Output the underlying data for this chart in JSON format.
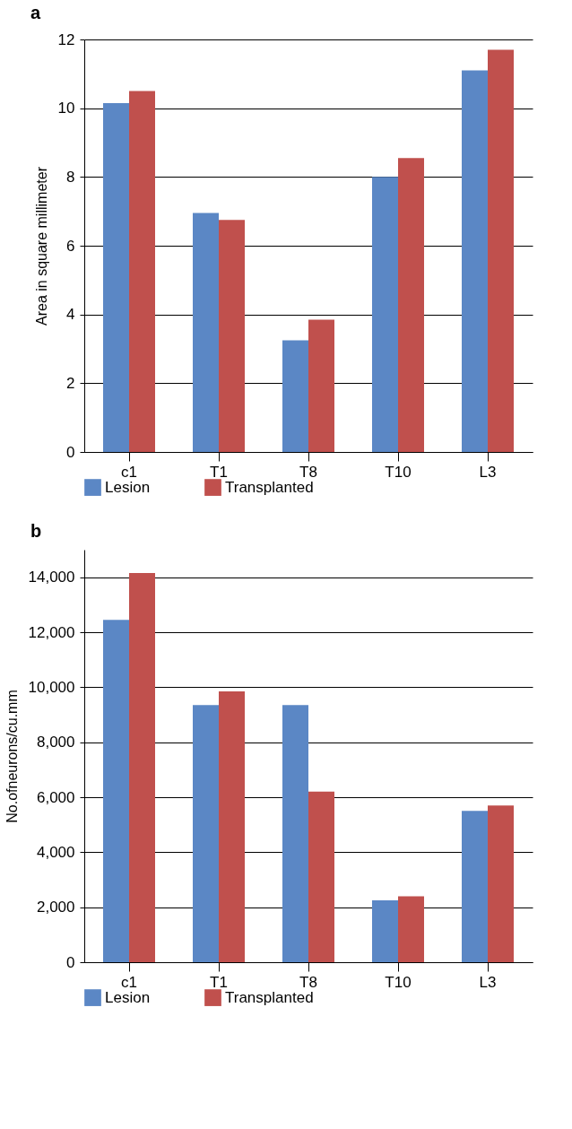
{
  "chart_data": [
    {
      "type": "bar",
      "title": "a",
      "ylabel": "Area in square millimeter",
      "categories": [
        "c1",
        "T1",
        "T8",
        "T10",
        "L3"
      ],
      "series": [
        {
          "name": "Lesion",
          "color": "#5b87c5",
          "values": [
            10.15,
            6.95,
            3.25,
            8.0,
            11.1
          ]
        },
        {
          "name": "Transplanted",
          "color": "#c0504d",
          "values": [
            10.5,
            6.75,
            3.85,
            8.55,
            11.7
          ]
        }
      ],
      "ylim": [
        0,
        12
      ],
      "yticks": [
        0,
        2,
        4,
        6,
        8,
        10,
        12
      ],
      "grid": "y",
      "legend": "bottom"
    },
    {
      "type": "bar",
      "title": "b",
      "ylabel": "No.ofneurons/cu.mm",
      "categories": [
        "c1",
        "T1",
        "T8",
        "T10",
        "L3"
      ],
      "series": [
        {
          "name": "Lesion",
          "color": "#5b87c5",
          "values": [
            12450,
            9350,
            9350,
            2250,
            5500
          ]
        },
        {
          "name": "Transplanted",
          "color": "#c0504d",
          "values": [
            14150,
            9850,
            6200,
            2400,
            5700
          ]
        }
      ],
      "ylim": [
        0,
        15000
      ],
      "yticks": [
        0,
        {
          "value": 2000,
          "label": "2,000"
        },
        {
          "value": 4000,
          "label": "4,000"
        },
        {
          "value": 6000,
          "label": "6,000"
        },
        {
          "value": 8000,
          "label": "8,000"
        },
        {
          "value": 10000,
          "label": "10,000"
        },
        {
          "value": 12000,
          "label": "12,000"
        },
        {
          "value": 14000,
          "label": "14,000"
        }
      ],
      "grid": "y",
      "legend": "bottom"
    }
  ]
}
